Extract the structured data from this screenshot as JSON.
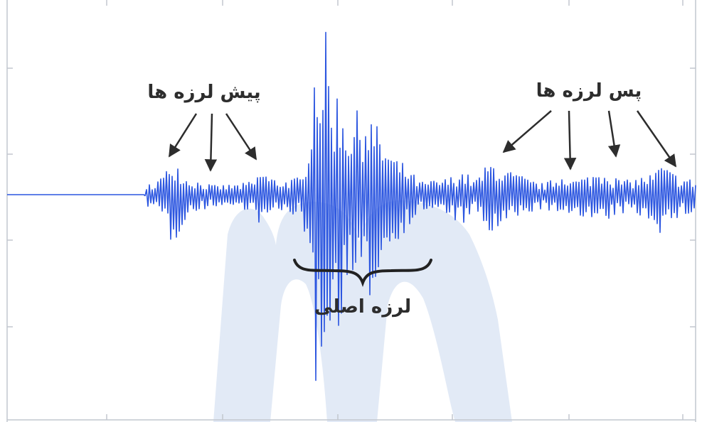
{
  "chart_data": {
    "type": "line",
    "title": "",
    "xlabel": "",
    "ylabel": "",
    "grid": false,
    "legend": "none",
    "series_color": "#2c56e0",
    "watermark_color": "#dfe8f5",
    "arrow_color": "#2d2d2d",
    "xlim": [
      0,
      100
    ],
    "ylim": [
      -100,
      100
    ],
    "series": [
      {
        "x": [
          0,
          20,
          20.5,
          23,
          24,
          26,
          30,
          34,
          36,
          37,
          38,
          40,
          43,
          44,
          44.5,
          45,
          45.5,
          46,
          46.5,
          47,
          48,
          50,
          52,
          54,
          56,
          58,
          60,
          62,
          64,
          66,
          68,
          70,
          71,
          72,
          74,
          76,
          78,
          80,
          81,
          82,
          84,
          86,
          87,
          88,
          90,
          92,
          94,
          95,
          96,
          98,
          100
        ],
        "y": [
          0,
          0,
          6,
          12,
          24,
          10,
          5,
          6,
          8,
          16,
          10,
          8,
          10,
          50,
          75,
          90,
          80,
          95,
          85,
          60,
          60,
          42,
          52,
          36,
          22,
          16,
          7,
          8,
          9,
          14,
          8,
          18,
          20,
          14,
          12,
          8,
          6,
          10,
          14,
          8,
          10,
          14,
          16,
          10,
          8,
          10,
          12,
          18,
          14,
          10,
          8
        ]
      }
    ],
    "annotations": [
      {
        "text": "پیش لرزه ها"
      },
      {
        "text": "لرزه اصلی"
      },
      {
        "text": "پس لرزه ها"
      }
    ]
  }
}
